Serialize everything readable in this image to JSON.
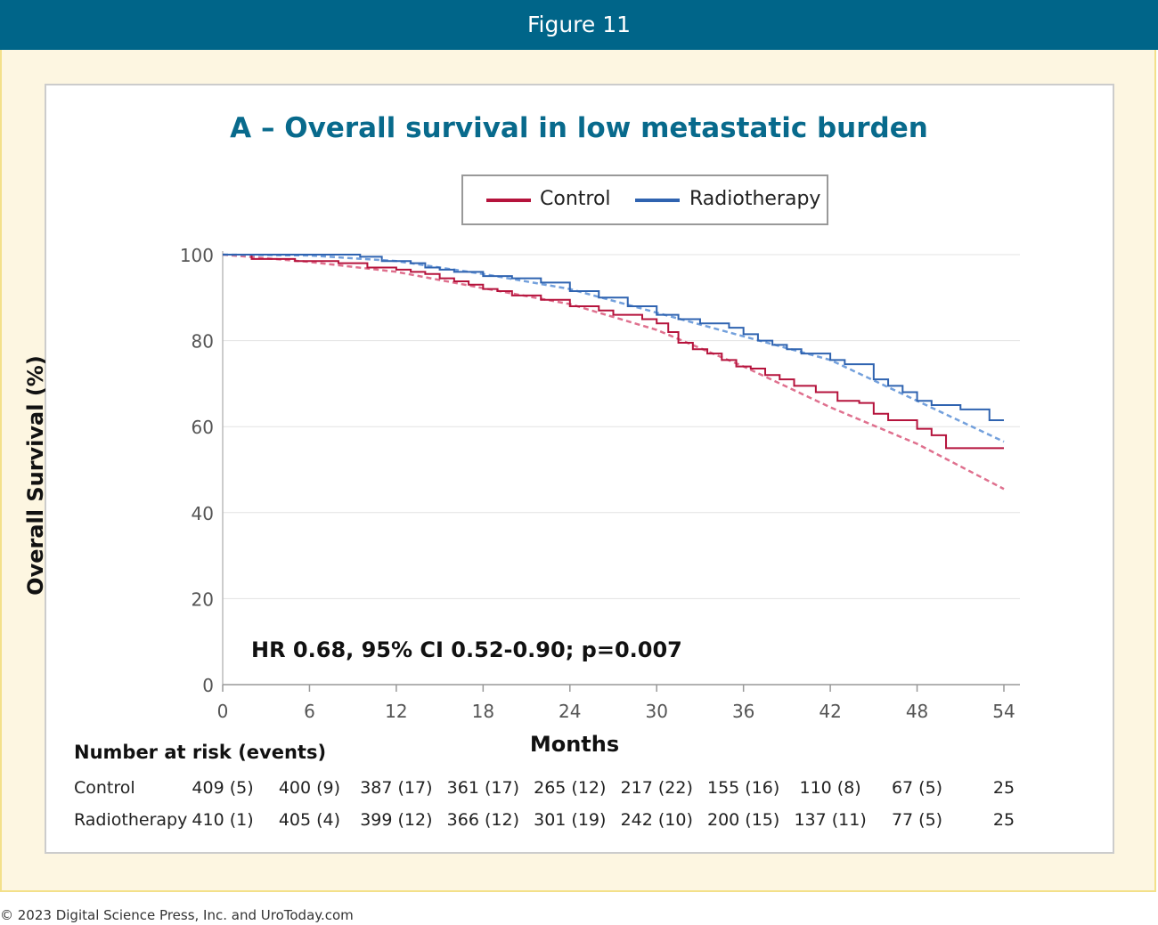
{
  "header": {
    "figure_label": "Figure 11"
  },
  "footer": {
    "copyright": "© 2023 Digital Science Press, Inc. and UroToday.com"
  },
  "colors": {
    "header_bg": "#006589",
    "control": "#b5133c",
    "radiotherapy": "#2f63b0",
    "title": "#086a8c"
  },
  "chart_data": {
    "type": "line",
    "title": "A – Overall survival in low metastatic burden",
    "xlabel": "Months",
    "ylabel": "Overall Survival (%)",
    "xlim": [
      0,
      54
    ],
    "ylim": [
      0,
      100
    ],
    "x_ticks": [
      0,
      6,
      12,
      18,
      24,
      30,
      36,
      42,
      48,
      54
    ],
    "y_ticks": [
      0,
      20,
      40,
      60,
      80,
      100
    ],
    "grid": "horizontal",
    "legend": "top-center",
    "annotation": "HR 0.68, 95% CI 0.52-0.90; p=0.007",
    "series": [
      {
        "name": "Control",
        "style": "step",
        "color": "#b5133c",
        "x": [
          0,
          2,
          5,
          8,
          10,
          12,
          13,
          14,
          15,
          16,
          17,
          18,
          19,
          20,
          22,
          24,
          26,
          27,
          29,
          30,
          30.8,
          31.5,
          32.5,
          33.5,
          34.5,
          35.5,
          36.5,
          37.5,
          38.5,
          39.5,
          41,
          42.5,
          44,
          45,
          46,
          48,
          49,
          50,
          52,
          54
        ],
        "y": [
          100,
          99,
          98.5,
          98,
          97,
          96.5,
          96,
          95.5,
          94.5,
          93.8,
          93,
          92,
          91.5,
          90.5,
          89.5,
          88,
          87,
          86,
          85,
          84,
          82,
          79.5,
          78,
          77,
          75.5,
          74,
          73.5,
          72,
          71,
          69.5,
          68,
          66,
          65.5,
          63,
          61.5,
          59.5,
          58,
          55,
          55,
          55
        ]
      },
      {
        "name": "Radiotherapy",
        "style": "step",
        "color": "#2f63b0",
        "x": [
          0,
          5,
          9.5,
          11,
          13,
          14,
          15,
          16,
          18,
          20,
          22,
          24,
          26,
          28,
          30,
          31.5,
          33,
          35,
          36,
          37,
          38,
          39,
          40,
          42,
          43,
          45,
          46,
          47,
          48,
          49,
          51,
          53,
          54
        ],
        "y": [
          100,
          100,
          99.5,
          98.5,
          98,
          97,
          96.5,
          96,
          95,
          94.5,
          93.5,
          91.5,
          90,
          88,
          86,
          85,
          84,
          83,
          81.5,
          80,
          79,
          78,
          77,
          75.5,
          74.5,
          71,
          69.5,
          68,
          66,
          65,
          64,
          61.5,
          61.5
        ]
      },
      {
        "name": "",
        "style": "dashed-fit",
        "color": "#d9577a",
        "x": [
          0,
          6,
          12,
          18,
          24,
          30,
          36,
          42,
          48,
          54
        ],
        "y": [
          100,
          98.3,
          96,
          92.2,
          88.5,
          82.5,
          74,
          64.5,
          56,
          45.5
        ]
      },
      {
        "name": "",
        "style": "dashed-fit",
        "color": "#5b8fd6",
        "x": [
          0,
          6,
          12,
          18,
          24,
          30,
          36,
          42,
          48,
          54
        ],
        "y": [
          100,
          99.8,
          98.5,
          95.5,
          92,
          86.5,
          81,
          75.5,
          66,
          56.5
        ]
      }
    ],
    "risk_table": {
      "title": "Number at risk (events)",
      "rows": [
        {
          "label": "Control",
          "values": [
            "409 (5)",
            "400 (9)",
            "387 (17)",
            "361 (17)",
            "265 (12)",
            "217 (22)",
            "155 (16)",
            "110 (8)",
            "67 (5)",
            "25"
          ]
        },
        {
          "label": "Radiotherapy",
          "values": [
            "410 (1)",
            "405 (4)",
            "399 (12)",
            "366 (12)",
            "301 (19)",
            "242 (10)",
            "200 (15)",
            "137 (11)",
            "77 (5)",
            "25"
          ]
        }
      ]
    }
  }
}
